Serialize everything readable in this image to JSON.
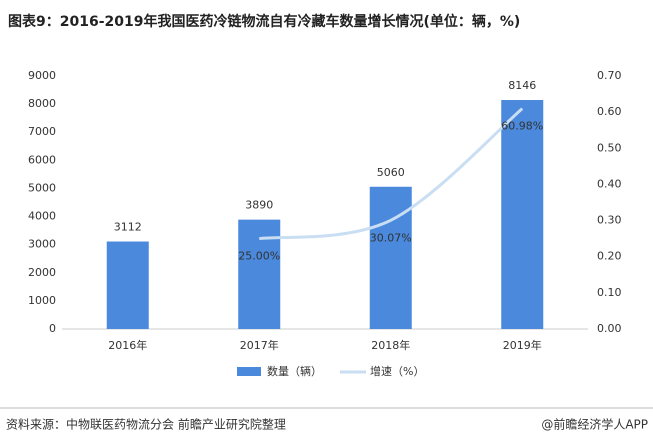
{
  "chart_data": {
    "type": "bar-line",
    "title": "图表9：2016-2019年我国医药冷链物流自有冷藏车数量增长情况(单位：辆，%)",
    "categories": [
      "2016年",
      "2017年",
      "2018年",
      "2019年"
    ],
    "series": [
      {
        "name": "数量（辆）",
        "type": "bar",
        "color": "#4a89dc",
        "values": [
          3112,
          3890,
          5060,
          8146
        ]
      },
      {
        "name": "增速（%）",
        "type": "line",
        "axis": "y2",
        "color": "#c9def3",
        "values": [
          null,
          0.25,
          0.3007,
          0.6098
        ],
        "value_labels": [
          null,
          "25.00%",
          "30.07%",
          "60.98%"
        ]
      }
    ],
    "ylim": [
      0,
      9000
    ],
    "yticks": [
      0,
      1000,
      2000,
      3000,
      4000,
      5000,
      6000,
      7000,
      8000,
      9000
    ],
    "y2lim": [
      0,
      0.7
    ],
    "y2ticks": [
      {
        "value": 0,
        "label": "0.00"
      },
      {
        "value": 0.1,
        "label": "0.10"
      },
      {
        "value": 0.2,
        "label": "0.20"
      },
      {
        "value": 0.3,
        "label": "0.30"
      },
      {
        "value": 0.4,
        "label": "0.40"
      },
      {
        "value": 0.5,
        "label": "0.50"
      },
      {
        "value": 0.6,
        "label": "0.60"
      },
      {
        "value": 0.7,
        "label": "0.70"
      }
    ],
    "legend": "bottom",
    "source": "资料来源：中物联医药物流分会 前瞻产业研究院整理",
    "credit": "@前瞻经济学人APP"
  }
}
